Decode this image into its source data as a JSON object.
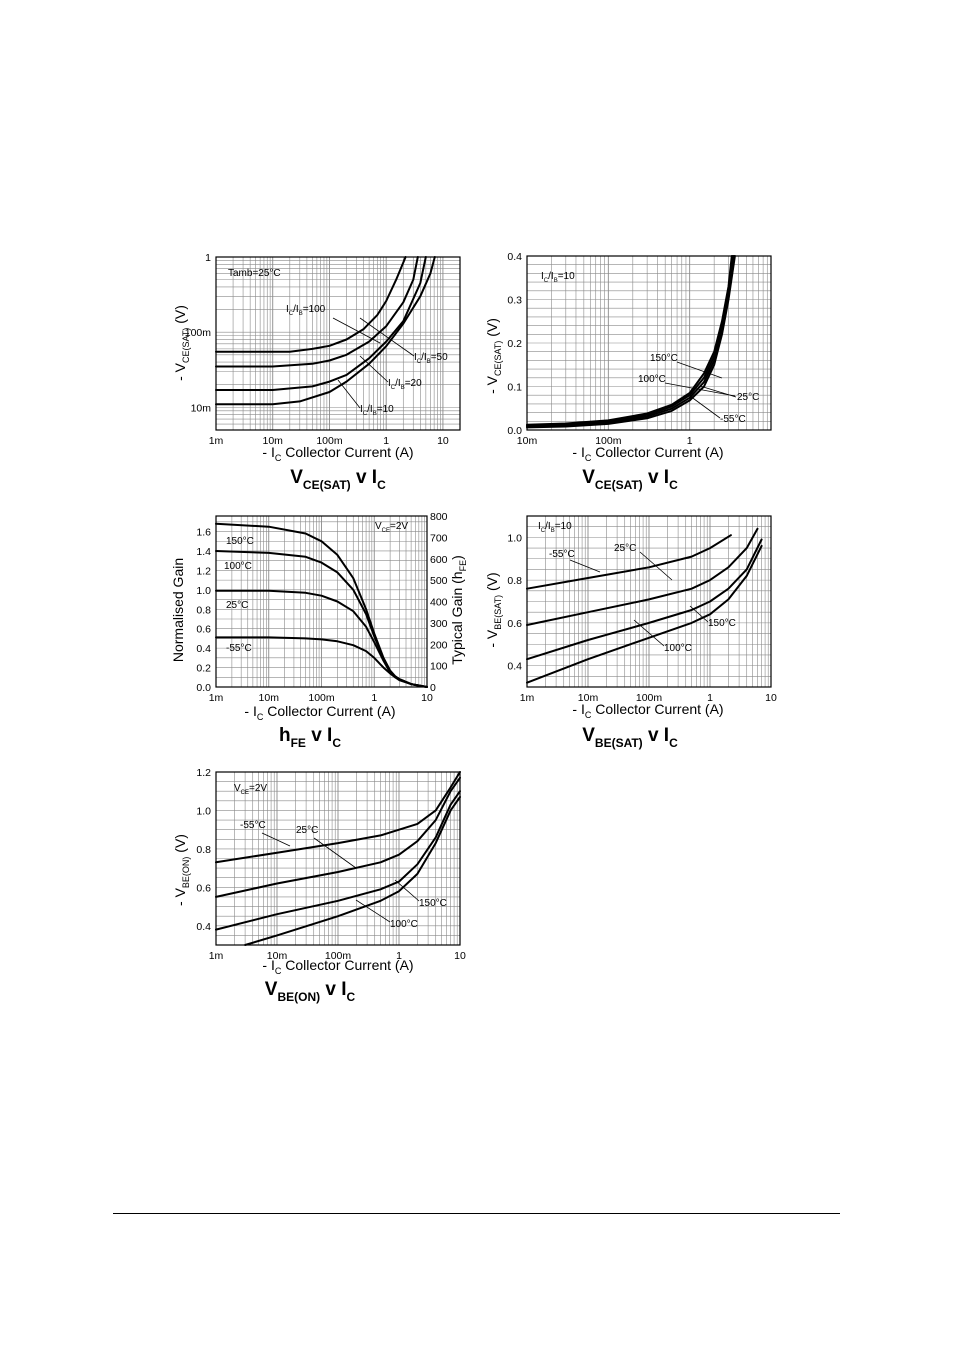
{
  "chart_data": [
    {
      "id": "vcesat",
      "type": "line",
      "title": "VCE(SAT) v IC",
      "title_rich": {
        "a": "V",
        "a_sub": "CE(SAT)",
        "b": " v I",
        "b_sub": "C"
      },
      "xlabel_rich": {
        "a": "- I",
        "a_sub": "C",
        "b": "   Collector Current (A)"
      },
      "ylabel_rich": {
        "a": "- V",
        "a_sub": "CE(SAT)",
        "b": "  (V)"
      },
      "xscale": "log",
      "yscale": "log",
      "xlim": [
        0.001,
        20
      ],
      "ylim": [
        0.005,
        1
      ],
      "xticks": [
        [
          0.001,
          "1m"
        ],
        [
          0.01,
          "10m"
        ],
        [
          0.1,
          "100m"
        ],
        [
          1,
          "1"
        ],
        [
          10,
          "10"
        ]
      ],
      "yticks": [
        [
          0.01,
          "10m"
        ],
        [
          0.1,
          "100m"
        ],
        [
          1,
          "1"
        ]
      ],
      "notes": [
        {
          "text": "Tamb=25°C"
        }
      ],
      "series": [
        {
          "name": "IC/IB=100",
          "x": [
            0.001,
            0.02,
            0.05,
            0.1,
            0.2,
            0.4,
            0.7,
            1,
            1.5,
            2.2
          ],
          "y": [
            0.055,
            0.055,
            0.06,
            0.066,
            0.08,
            0.11,
            0.17,
            0.26,
            0.5,
            1
          ]
        },
        {
          "name": "IC/IB=50",
          "x": [
            0.001,
            0.01,
            0.05,
            0.1,
            0.2,
            0.5,
            1,
            2,
            3,
            3.6
          ],
          "y": [
            0.035,
            0.035,
            0.038,
            0.042,
            0.05,
            0.075,
            0.12,
            0.25,
            0.5,
            1
          ]
        },
        {
          "name": "IC/IB=20",
          "x": [
            0.001,
            0.01,
            0.05,
            0.1,
            0.2,
            0.5,
            1,
            2,
            4,
            5
          ],
          "y": [
            0.017,
            0.017,
            0.019,
            0.022,
            0.027,
            0.045,
            0.075,
            0.14,
            0.45,
            1
          ]
        },
        {
          "name": "IC/IB=10",
          "x": [
            0.001,
            0.01,
            0.03,
            0.1,
            0.2,
            0.5,
            1,
            2,
            4,
            6,
            7.2
          ],
          "y": [
            0.011,
            0.011,
            0.012,
            0.016,
            0.022,
            0.038,
            0.065,
            0.13,
            0.3,
            0.6,
            1
          ]
        }
      ],
      "annotations": [
        {
          "rich": {
            "a": "I",
            "a_sub": "C",
            "b": "/I",
            "b_sub": "B",
            "c": "=100"
          }
        },
        {
          "rich": {
            "a": "I",
            "a_sub": "C",
            "b": "/I",
            "b_sub": "B",
            "c": "=50"
          }
        },
        {
          "rich": {
            "a": "I",
            "a_sub": "C",
            "b": "/I",
            "b_sub": "B",
            "c": "=20"
          }
        },
        {
          "rich": {
            "a": "I",
            "a_sub": "C",
            "b": "/I",
            "b_sub": "B",
            "c": "=10"
          }
        }
      ]
    },
    {
      "id": "vcesat_temp",
      "type": "line",
      "title": "VCE(SAT) v IC",
      "title_rich": {
        "a": "V",
        "a_sub": "CE(SAT)",
        "b": " v I",
        "b_sub": "C"
      },
      "xlabel_rich": {
        "a": "- I",
        "a_sub": "C",
        "b": "   Collector Current (A)"
      },
      "ylabel_rich": {
        "a": "- V",
        "a_sub": "CE(SAT)",
        "b": "  (V)"
      },
      "xscale": "log",
      "yscale": "linear",
      "xlim": [
        0.01,
        10
      ],
      "ylim": [
        0,
        0.4
      ],
      "xticks": [
        [
          0.01,
          "10m"
        ],
        [
          0.1,
          "100m"
        ],
        [
          1,
          "1"
        ]
      ],
      "yticks": [
        [
          0,
          "0.0"
        ],
        [
          0.1,
          "0.1"
        ],
        [
          0.2,
          "0.2"
        ],
        [
          0.3,
          "0.3"
        ],
        [
          0.4,
          "0.4"
        ]
      ],
      "notes": [
        {
          "rich": {
            "a": "I",
            "a_sub": "C",
            "b": "/I",
            "b_sub": "B",
            "c": "=10"
          }
        }
      ],
      "series": [
        {
          "name": "150°C",
          "x": [
            0.01,
            0.03,
            0.1,
            0.3,
            0.6,
            1,
            1.5,
            2,
            2.5,
            3,
            3.3
          ],
          "y": [
            0.012,
            0.015,
            0.022,
            0.038,
            0.058,
            0.085,
            0.13,
            0.18,
            0.25,
            0.33,
            0.4
          ]
        },
        {
          "name": "100°C",
          "x": [
            0.01,
            0.03,
            0.1,
            0.3,
            0.6,
            1,
            1.5,
            2,
            2.5,
            3,
            3.4
          ],
          "y": [
            0.01,
            0.013,
            0.02,
            0.035,
            0.054,
            0.08,
            0.12,
            0.17,
            0.24,
            0.32,
            0.4
          ]
        },
        {
          "name": "25°C",
          "x": [
            0.01,
            0.03,
            0.1,
            0.3,
            0.6,
            1,
            1.5,
            2,
            2.5,
            3,
            3.5
          ],
          "y": [
            0.008,
            0.01,
            0.017,
            0.031,
            0.049,
            0.074,
            0.11,
            0.16,
            0.23,
            0.31,
            0.4
          ]
        },
        {
          "name": "-55°C",
          "x": [
            0.01,
            0.03,
            0.1,
            0.3,
            0.6,
            1,
            1.5,
            2,
            2.5,
            3,
            3.6
          ],
          "y": [
            0.006,
            0.008,
            0.014,
            0.027,
            0.044,
            0.068,
            0.1,
            0.15,
            0.22,
            0.3,
            0.4
          ]
        }
      ],
      "annotations": [
        {
          "text": "150°C"
        },
        {
          "text": "100°C"
        },
        {
          "text": "25°C"
        },
        {
          "text": "-55°C"
        }
      ]
    },
    {
      "id": "hfe",
      "type": "line",
      "title": "hFE v IC",
      "title_rich": {
        "a": "h",
        "a_sub": "FE",
        "b": " v I",
        "b_sub": "C"
      },
      "xlabel_rich": {
        "a": "- I",
        "a_sub": "C",
        "b": "   Collector Current (A)"
      },
      "ylabel_left": "Normalised Gain",
      "ylabel_right_rich": {
        "a": "Typical Gain (h",
        "a_sub": "FE",
        "b": ")"
      },
      "xscale": "log",
      "yscale": "linear",
      "xlim": [
        0.001,
        10
      ],
      "ylim": [
        0,
        1.76
      ],
      "y2lim": [
        0,
        800
      ],
      "xticks": [
        [
          0.001,
          "1m"
        ],
        [
          0.01,
          "10m"
        ],
        [
          0.1,
          "100m"
        ],
        [
          1,
          "1"
        ],
        [
          10,
          "10"
        ]
      ],
      "yticks": [
        [
          0,
          "0.0"
        ],
        [
          0.2,
          "0.2"
        ],
        [
          0.4,
          "0.4"
        ],
        [
          0.6,
          "0.6"
        ],
        [
          0.8,
          "0.8"
        ],
        [
          1.0,
          "1.0"
        ],
        [
          1.2,
          "1.2"
        ],
        [
          1.4,
          "1.4"
        ],
        [
          1.6,
          "1.6"
        ]
      ],
      "y2ticks": [
        [
          0,
          "0"
        ],
        [
          100,
          "100"
        ],
        [
          200,
          "200"
        ],
        [
          300,
          "300"
        ],
        [
          400,
          "400"
        ],
        [
          500,
          "500"
        ],
        [
          600,
          "600"
        ],
        [
          700,
          "700"
        ],
        [
          800,
          "800"
        ]
      ],
      "notes": [
        {
          "rich": {
            "a": "V",
            "a_sub": "CE",
            "b": "=2V"
          }
        }
      ],
      "series": [
        {
          "name": "150°C",
          "x": [
            0.001,
            0.01,
            0.05,
            0.1,
            0.2,
            0.4,
            0.7,
            1,
            1.5,
            2,
            2.5,
            3,
            5,
            10
          ],
          "y": [
            1.68,
            1.65,
            1.58,
            1.5,
            1.36,
            1.12,
            0.8,
            0.55,
            0.3,
            0.17,
            0.11,
            0.08,
            0.03,
            0
          ]
        },
        {
          "name": "100°C",
          "x": [
            0.001,
            0.01,
            0.05,
            0.1,
            0.2,
            0.4,
            0.7,
            1,
            1.5,
            2,
            2.5,
            3,
            5,
            10
          ],
          "y": [
            1.4,
            1.38,
            1.34,
            1.28,
            1.18,
            1.0,
            0.75,
            0.52,
            0.29,
            0.16,
            0.11,
            0.08,
            0.03,
            0
          ]
        },
        {
          "name": "25°C",
          "x": [
            0.001,
            0.01,
            0.05,
            0.1,
            0.2,
            0.4,
            0.7,
            1,
            1.5,
            2,
            2.5,
            3,
            5,
            10
          ],
          "y": [
            0.99,
            0.99,
            0.97,
            0.94,
            0.88,
            0.78,
            0.62,
            0.46,
            0.27,
            0.15,
            0.1,
            0.08,
            0.03,
            0
          ]
        },
        {
          "name": "-55°C",
          "x": [
            0.001,
            0.01,
            0.05,
            0.1,
            0.2,
            0.4,
            0.7,
            1,
            1.5,
            2,
            2.5,
            3,
            5,
            10
          ],
          "y": [
            0.51,
            0.51,
            0.5,
            0.49,
            0.47,
            0.43,
            0.37,
            0.3,
            0.2,
            0.14,
            0.1,
            0.07,
            0.03,
            0
          ]
        }
      ],
      "annotations": [
        {
          "text": "150°C"
        },
        {
          "text": "100°C"
        },
        {
          "text": "25°C"
        },
        {
          "text": "-55°C"
        }
      ]
    },
    {
      "id": "vbesat",
      "type": "line",
      "title": "VBE(SAT) v IC",
      "title_rich": {
        "a": "V",
        "a_sub": "BE(SAT)",
        "b": " v I",
        "b_sub": "C"
      },
      "xlabel_rich": {
        "a": "- I",
        "a_sub": "C",
        "b": "   Collector Current (A)"
      },
      "ylabel_rich": {
        "a": "- V",
        "a_sub": "BE(SAT)",
        "b": "  (V)"
      },
      "xscale": "log",
      "yscale": "linear",
      "xlim": [
        0.001,
        10
      ],
      "ylim": [
        0.3,
        1.1
      ],
      "xticks": [
        [
          0.001,
          "1m"
        ],
        [
          0.01,
          "10m"
        ],
        [
          0.1,
          "100m"
        ],
        [
          1,
          "1"
        ],
        [
          10,
          "10"
        ]
      ],
      "yticks": [
        [
          0.4,
          "0.4"
        ],
        [
          0.6,
          "0.6"
        ],
        [
          0.8,
          "0.8"
        ],
        [
          1.0,
          "1.0"
        ]
      ],
      "notes": [
        {
          "rich": {
            "a": "I",
            "a_sub": "C",
            "b": "/I",
            "b_sub": "B",
            "c": "=10"
          }
        }
      ],
      "series": [
        {
          "name": "-55°C",
          "x": [
            0.001,
            0.01,
            0.1,
            0.5,
            1,
            2.2
          ],
          "y": [
            0.76,
            0.81,
            0.86,
            0.91,
            0.95,
            1.01
          ]
        },
        {
          "name": "25°C",
          "x": [
            0.001,
            0.01,
            0.1,
            0.5,
            1,
            2,
            4,
            6
          ],
          "y": [
            0.59,
            0.65,
            0.71,
            0.76,
            0.8,
            0.86,
            0.95,
            1.04
          ]
        },
        {
          "name": "100°C",
          "x": [
            0.001,
            0.01,
            0.1,
            0.5,
            1,
            2,
            4,
            7
          ],
          "y": [
            0.43,
            0.52,
            0.6,
            0.66,
            0.7,
            0.76,
            0.85,
            0.99
          ]
        },
        {
          "name": "150°C",
          "x": [
            0.001,
            0.01,
            0.1,
            0.5,
            1,
            2,
            4,
            7
          ],
          "y": [
            0.32,
            0.43,
            0.53,
            0.6,
            0.64,
            0.71,
            0.82,
            0.96
          ]
        }
      ],
      "annotations": [
        {
          "text": "-55°C"
        },
        {
          "text": "25°C"
        },
        {
          "text": "150°C"
        },
        {
          "text": "100°C"
        }
      ]
    },
    {
      "id": "vbeon",
      "type": "line",
      "title": "VBE(ON) v IC",
      "title_rich": {
        "a": "V",
        "a_sub": "BE(ON)",
        "b": " v I",
        "b_sub": "C"
      },
      "xlabel_rich": {
        "a": "- I",
        "a_sub": "C",
        "b": "   Collector Current (A)"
      },
      "ylabel_rich": {
        "a": "- V",
        "a_sub": "BE(ON)",
        "b": "  (V)"
      },
      "xscale": "log",
      "yscale": "linear",
      "xlim": [
        0.001,
        10
      ],
      "ylim": [
        0.3,
        1.2
      ],
      "xticks": [
        [
          0.001,
          "1m"
        ],
        [
          0.01,
          "10m"
        ],
        [
          0.1,
          "100m"
        ],
        [
          1,
          "1"
        ],
        [
          10,
          "10"
        ]
      ],
      "yticks": [
        [
          0.4,
          "0.4"
        ],
        [
          0.6,
          "0.6"
        ],
        [
          0.8,
          "0.8"
        ],
        [
          1.0,
          "1.0"
        ],
        [
          1.2,
          "1.2"
        ]
      ],
      "notes": [
        {
          "rich": {
            "a": "V",
            "a_sub": "CE",
            "b": "=2V"
          }
        }
      ],
      "series": [
        {
          "name": "-55°C",
          "x": [
            0.001,
            0.01,
            0.1,
            0.5,
            1,
            2,
            4,
            7,
            10
          ],
          "y": [
            0.73,
            0.78,
            0.83,
            0.87,
            0.9,
            0.93,
            1.0,
            1.12,
            1.2
          ]
        },
        {
          "name": "25°C",
          "x": [
            0.001,
            0.01,
            0.1,
            0.5,
            1,
            2,
            4,
            7,
            10
          ],
          "y": [
            0.55,
            0.62,
            0.68,
            0.73,
            0.77,
            0.84,
            0.95,
            1.1,
            1.17
          ]
        },
        {
          "name": "100°C",
          "x": [
            0.001,
            0.01,
            0.1,
            0.5,
            1,
            2,
            4,
            7,
            10
          ],
          "y": [
            0.38,
            0.46,
            0.53,
            0.59,
            0.63,
            0.72,
            0.86,
            1.03,
            1.1
          ]
        },
        {
          "name": "150°C",
          "x": [
            0.003,
            0.01,
            0.1,
            0.5,
            1,
            2,
            4,
            7,
            10
          ],
          "y": [
            0.3,
            0.35,
            0.45,
            0.53,
            0.58,
            0.67,
            0.83,
            1.0,
            1.07
          ]
        }
      ],
      "annotations": [
        {
          "text": "-55°C"
        },
        {
          "text": "25°C"
        },
        {
          "text": "150°C"
        },
        {
          "text": "100°C"
        }
      ]
    }
  ]
}
